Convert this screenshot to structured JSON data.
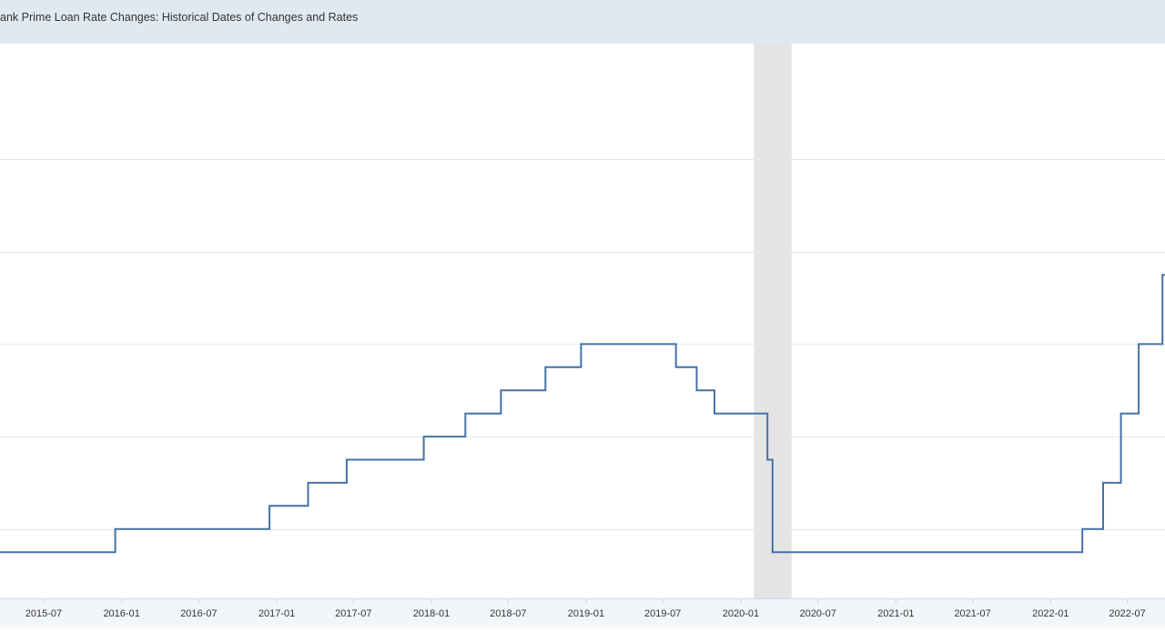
{
  "title": "ank Prime Loan Rate Changes: Historical Dates of Changes and Rates",
  "colors": {
    "line": "#4572a7",
    "grid": "#e6e6e6",
    "recession": "#e4e4e4",
    "axis": "#ccd6eb",
    "tick_text": "#333333",
    "title_bg": "#e1e9f0"
  },
  "chart_data": {
    "type": "line",
    "step": true,
    "x_range": [
      "2015-03-20",
      "2022-09-28"
    ],
    "y_range": [
      2.75,
      8.75
    ],
    "y_gridlines": [
      3.5,
      4.5,
      5.5,
      6.5,
      7.5
    ],
    "grid": true,
    "legend": "none",
    "x_ticks": [
      "2015-07",
      "2016-01",
      "2016-07",
      "2017-01",
      "2017-07",
      "2018-01",
      "2018-07",
      "2019-01",
      "2019-07",
      "2020-01",
      "2020-07",
      "2021-01",
      "2021-07",
      "2022-01",
      "2022-07"
    ],
    "recession": {
      "start": "2020-02-01",
      "end": "2020-04-30"
    },
    "series": [
      {
        "points": [
          {
            "date": "2015-03-20",
            "rate": 3.25
          },
          {
            "date": "2015-12-17",
            "rate": 3.5
          },
          {
            "date": "2016-12-15",
            "rate": 3.75
          },
          {
            "date": "2017-03-16",
            "rate": 4.0
          },
          {
            "date": "2017-06-15",
            "rate": 4.25
          },
          {
            "date": "2017-12-14",
            "rate": 4.5
          },
          {
            "date": "2018-03-22",
            "rate": 4.75
          },
          {
            "date": "2018-06-14",
            "rate": 5.0
          },
          {
            "date": "2018-09-27",
            "rate": 5.25
          },
          {
            "date": "2018-12-20",
            "rate": 5.5
          },
          {
            "date": "2019-08-01",
            "rate": 5.25
          },
          {
            "date": "2019-09-19",
            "rate": 5.0
          },
          {
            "date": "2019-10-31",
            "rate": 4.75
          },
          {
            "date": "2020-03-04",
            "rate": 4.25
          },
          {
            "date": "2020-03-16",
            "rate": 3.25
          },
          {
            "date": "2022-03-17",
            "rate": 3.5
          },
          {
            "date": "2022-05-05",
            "rate": 4.0
          },
          {
            "date": "2022-06-16",
            "rate": 4.75
          },
          {
            "date": "2022-07-28",
            "rate": 5.5
          },
          {
            "date": "2022-09-22",
            "rate": 6.25
          },
          {
            "date": "2022-09-28",
            "rate": 6.25
          }
        ]
      }
    ]
  }
}
